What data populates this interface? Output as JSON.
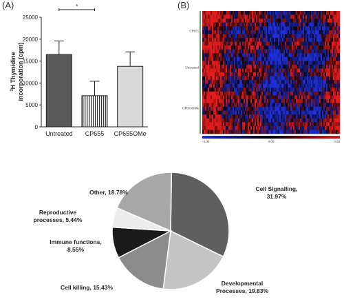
{
  "panels": {
    "a_label": "(A)",
    "b_label": "(B)"
  },
  "chart_data": [
    {
      "type": "bar",
      "panel": "(A)",
      "ylabel_sup": "3",
      "ylabel_line1": "H Thymidine",
      "ylabel_line2": "incorporation (cpm)",
      "categories": [
        "Untreated",
        "CP655",
        "CP655OMe"
      ],
      "values": [
        16500,
        7100,
        13800
      ],
      "errors": [
        3100,
        3300,
        3300
      ],
      "bar_colors": [
        "#595959",
        "#ffffff",
        "#d9d9d9"
      ],
      "bar_patterns": [
        "solid",
        "vertical-stripes",
        "solid"
      ],
      "ylim": [
        0,
        25000
      ],
      "yticks": [
        "0",
        "5000",
        "10000",
        "15000",
        "20000",
        "25000"
      ],
      "significance": {
        "between": [
          "Untreated",
          "CP655"
        ],
        "mark": "*"
      }
    },
    {
      "type": "heatmap",
      "panel": "(B)",
      "row_groups": [
        "CP655",
        "Untreated",
        "CP655OMe"
      ],
      "scale_labels": [
        "-3.00",
        "0.00",
        "3.00"
      ],
      "colormap": {
        "low": "#1f2fd6",
        "mid": "#000000",
        "high": "#e01c1c"
      }
    },
    {
      "type": "pie",
      "slices": [
        {
          "label": "Cell Signalling,",
          "pct_label": "31.97%",
          "value": 31.97,
          "color": "#5f5f5f"
        },
        {
          "label": "Developmental Processes,",
          "pct_label": "19.83%",
          "value": 19.83,
          "color": "#c4c4c4"
        },
        {
          "label": "Cell killing,",
          "pct_label": "15.43%",
          "value": 15.43,
          "color": "#8c8c8c"
        },
        {
          "label": "Immune functions,",
          "pct_label": "8.55%",
          "value": 8.55,
          "color": "#1a1a1a"
        },
        {
          "label": "Reproductive processes,",
          "pct_label": "5.44%",
          "value": 5.44,
          "color": "#ececec"
        },
        {
          "label": "Other,",
          "pct_label": "18.78%",
          "value": 18.78,
          "color": "#a8a8a8"
        }
      ]
    }
  ]
}
